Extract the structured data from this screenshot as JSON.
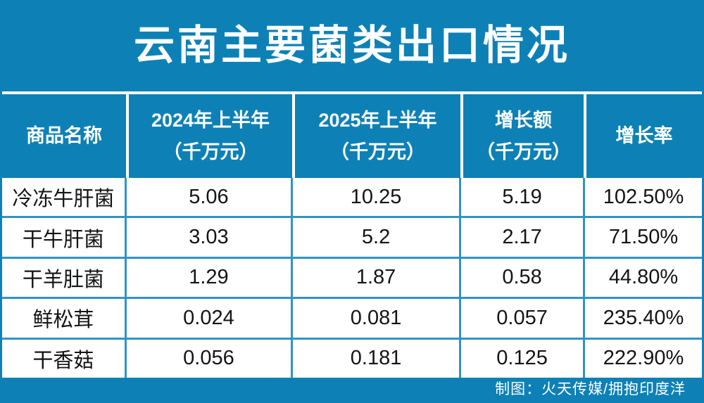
{
  "title": "云南主要菌类出口情况",
  "footer": {
    "credit": "制图：火天传媒/拥抱印度洋"
  },
  "colors": {
    "background_blue": "#0d81b6",
    "grid_border_blue": "#2e94c6",
    "header_separator_white": "#ffffff",
    "cell_background": "#ffffff",
    "title_text": "#ffffff",
    "cell_text": "#141414"
  },
  "chart_data": {
    "type": "table",
    "title": "云南主要菌类出口情况",
    "headers": [
      {
        "line1": "商品名称",
        "line2": ""
      },
      {
        "line1": "2024年上半年",
        "line2": "（千万元）"
      },
      {
        "line1": "2025年上半年",
        "line2": "（千万元）"
      },
      {
        "line1": "增长额",
        "line2": "（千万元）"
      },
      {
        "line1": "增长率",
        "line2": ""
      }
    ],
    "rows": [
      {
        "name": "冷冻牛肝菌",
        "h1_2024": "5.06",
        "h1_2025": "10.25",
        "growth_amount": "5.19",
        "growth_rate": "102.50%"
      },
      {
        "name": "干牛肝菌",
        "h1_2024": "3.03",
        "h1_2025": "5.2",
        "growth_amount": "2.17",
        "growth_rate": "71.50%"
      },
      {
        "name": "干羊肚菌",
        "h1_2024": "1.29",
        "h1_2025": "1.87",
        "growth_amount": "0.58",
        "growth_rate": "44.80%"
      },
      {
        "name": "鲜松茸",
        "h1_2024": "0.024",
        "h1_2025": "0.081",
        "growth_amount": "0.057",
        "growth_rate": "235.40%"
      },
      {
        "name": "干香菇",
        "h1_2024": "0.056",
        "h1_2025": "0.181",
        "growth_amount": "0.125",
        "growth_rate": "222.90%"
      }
    ]
  }
}
